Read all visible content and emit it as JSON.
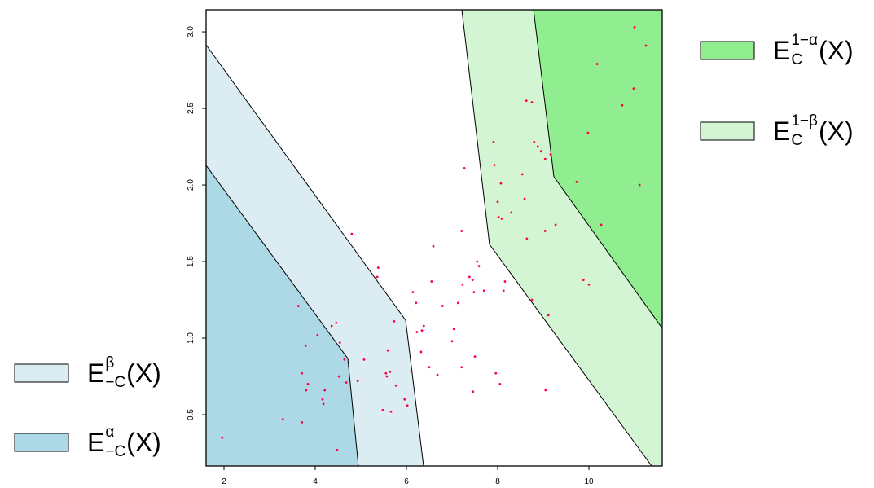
{
  "chart_data": {
    "type": "scatter",
    "xlim": [
      1.607,
      11.607
    ],
    "ylim": [
      0.165,
      3.144
    ],
    "xticks": [
      2,
      4,
      6,
      8,
      10
    ],
    "yticks": [
      0.5,
      {
        "value": 1,
        "label": "1.0"
      },
      1.5,
      {
        "value": 2,
        "label": "2.0"
      },
      2.5,
      {
        "value": 3,
        "label": "3.0"
      }
    ],
    "regions": [
      {
        "label": {
          "base": "E",
          "sup": "β",
          "sub": "−C",
          "arg": "(X)"
        },
        "color": "#dbedf3",
        "x": [
          1.607,
          5.982,
          6.375,
          1.607
        ],
        "y": [
          2.915,
          1.117,
          0.165,
          0.165
        ]
      },
      {
        "label": {
          "base": "E",
          "sup": "α",
          "sub": "−C",
          "arg": "(X)"
        },
        "color": "#add8e6",
        "x": [
          1.607,
          4.714,
          4.946,
          1.607
        ],
        "y": [
          2.128,
          0.867,
          0.165,
          0.165
        ]
      },
      {
        "label": {
          "base": "E",
          "sup": "1−β",
          "sub": "C",
          "arg": "(X)"
        },
        "color": "#d4f5d4",
        "x": [
          7.214,
          11.607,
          11.607,
          11.375,
          7.821
        ],
        "y": [
          3.144,
          3.144,
          0.165,
          0.165,
          1.612
        ]
      },
      {
        "label": {
          "base": "E",
          "sup": "1−α",
          "sub": "C",
          "arg": "(X)"
        },
        "color": "#90ee90",
        "x": [
          8.786,
          11.607,
          11.607,
          9.232
        ],
        "y": [
          3.144,
          3.144,
          1.064,
          2.054
        ]
      }
    ],
    "points": {
      "color": "#ff0040",
      "x": [
        1.96,
        3.29,
        3.71,
        3.63,
        3.71,
        3.79,
        3.84,
        3.8,
        4.05,
        4.16,
        4.18,
        4.21,
        4.36,
        4.46,
        4.48,
        4.54,
        4.52,
        4.64,
        4.68,
        4.8,
        4.93,
        5.07,
        5.38,
        5.36,
        5.48,
        5.55,
        5.57,
        5.59,
        5.64,
        5.66,
        5.73,
        5.77,
        5.96,
        6.02,
        6.11,
        6.14,
        6.21,
        6.23,
        6.34,
        6.38,
        6.32,
        6.55,
        6.59,
        6.5,
        6.68,
        6.79,
        7.04,
        7.0,
        7.13,
        7.21,
        7.23,
        7.27,
        7.21,
        7.38,
        7.45,
        7.48,
        7.5,
        7.46,
        7.55,
        7.59,
        7.7,
        7.91,
        7.93,
        7.96,
        8.0,
        8.05,
        8.02,
        8.07,
        8.09,
        8.16,
        8.13,
        8.3,
        8.54,
        8.59,
        8.63,
        8.64,
        8.75,
        8.75,
        8.8,
        8.88,
        8.95,
        9.04,
        9.04,
        9.05,
        9.11,
        9.16,
        9.27,
        9.73,
        9.88,
        9.98,
        10.0,
        10.18,
        10.27,
        10.73,
        10.98,
        11.0,
        11.11,
        11.25
      ],
      "y": [
        0.35,
        0.47,
        0.45,
        1.21,
        0.77,
        0.95,
        0.7,
        0.66,
        1.02,
        0.6,
        0.57,
        0.66,
        1.08,
        1.1,
        0.27,
        0.97,
        0.75,
        0.86,
        0.71,
        1.68,
        0.72,
        0.86,
        1.46,
        1.4,
        0.53,
        0.77,
        0.75,
        0.92,
        0.78,
        0.52,
        1.11,
        0.69,
        0.6,
        0.56,
        0.78,
        1.3,
        1.23,
        1.04,
        1.05,
        1.08,
        0.91,
        1.37,
        1.6,
        0.81,
        0.76,
        1.21,
        1.06,
        0.98,
        1.23,
        1.7,
        1.35,
        2.11,
        0.81,
        1.4,
        1.38,
        1.3,
        0.88,
        0.65,
        1.5,
        1.47,
        1.31,
        2.28,
        2.13,
        0.77,
        1.89,
        0.7,
        1.79,
        2.01,
        1.78,
        1.37,
        1.31,
        1.82,
        2.07,
        1.91,
        2.55,
        1.65,
        2.54,
        1.25,
        2.28,
        2.25,
        2.22,
        2.17,
        1.7,
        0.66,
        1.15,
        2.2,
        1.74,
        2.02,
        1.38,
        2.34,
        1.35,
        2.79,
        1.74,
        2.52,
        2.63,
        3.03,
        2.0,
        2.91
      ]
    }
  }
}
